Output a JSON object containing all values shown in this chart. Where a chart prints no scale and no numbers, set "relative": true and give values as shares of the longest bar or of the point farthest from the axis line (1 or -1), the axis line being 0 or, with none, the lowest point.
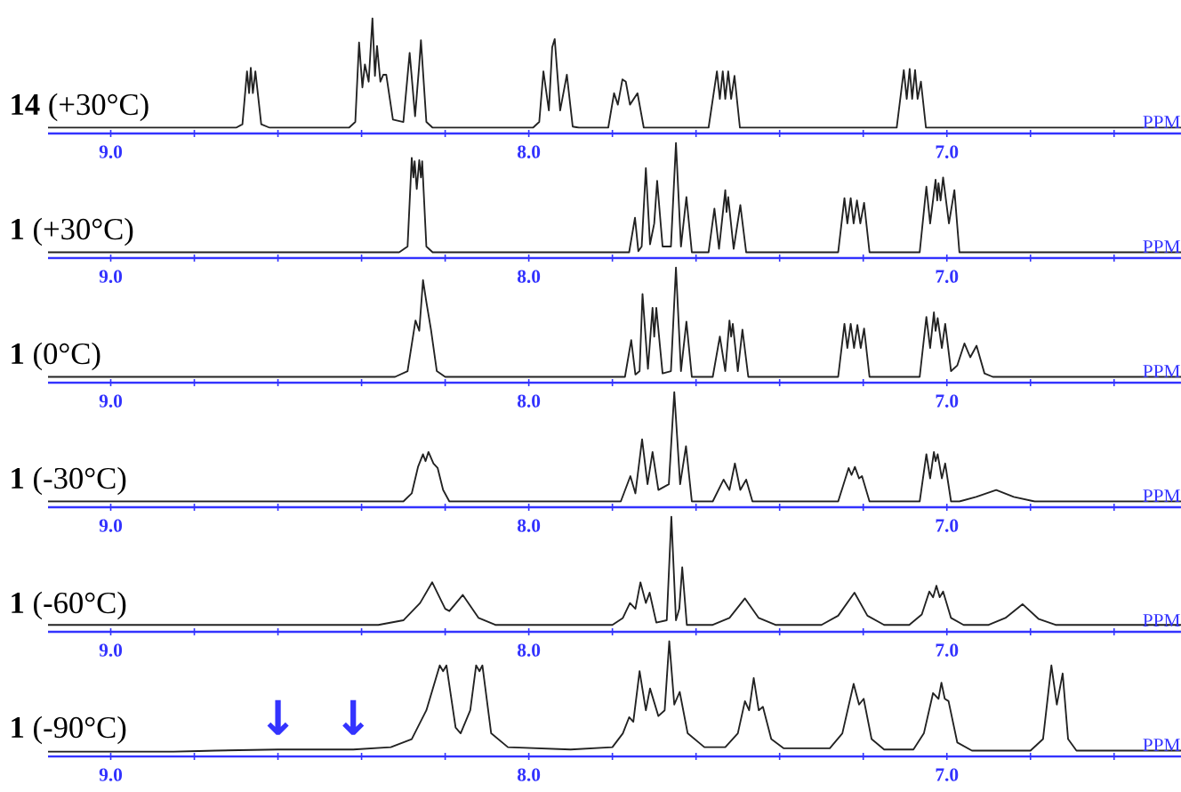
{
  "chart_data": [
    {
      "type": "line",
      "relative": true,
      "xlabel": "PPM",
      "xlim": [
        9.15,
        6.44
      ],
      "xticks": [
        {
          "value": 9.0,
          "label": "9.0"
        },
        {
          "value": 8.8,
          "label": null
        },
        {
          "value": 8.6,
          "label": null
        },
        {
          "value": 8.4,
          "label": null
        },
        {
          "value": 8.2,
          "label": null
        },
        {
          "value": 8.0,
          "label": "8.0"
        },
        {
          "value": 7.8,
          "label": null
        },
        {
          "value": 7.6,
          "label": null
        },
        {
          "value": 7.4,
          "label": null
        },
        {
          "value": 7.2,
          "label": null
        },
        {
          "value": 7.0,
          "label": "7.0"
        },
        {
          "value": 6.8,
          "label": null
        },
        {
          "value": 6.6,
          "label": null
        }
      ],
      "series": [
        {
          "name": "**14** (+30°C)",
          "color": "#222222",
          "x": [
            9.15,
            8.7,
            8.685,
            8.674,
            8.669,
            8.665,
            8.66,
            8.654,
            8.64,
            8.62,
            8.43,
            8.415,
            8.406,
            8.398,
            8.392,
            8.383,
            8.374,
            8.368,
            8.363,
            8.355,
            8.348,
            8.341,
            8.325,
            8.3,
            8.285,
            8.272,
            8.262,
            8.258,
            8.245,
            8.23,
            7.99,
            7.975,
            7.965,
            7.952,
            7.944,
            7.938,
            7.925,
            7.909,
            7.895,
            7.88,
            7.81,
            7.796,
            7.787,
            7.776,
            7.768,
            7.758,
            7.74,
            7.725,
            7.57,
            7.55,
            7.543,
            7.536,
            7.53,
            7.523,
            7.516,
            7.508,
            7.495,
            7.12,
            7.103,
            7.096,
            7.089,
            7.083,
            7.076,
            7.07,
            7.062,
            7.05,
            6.44
          ],
          "values": [
            0.05,
            0.05,
            0.08,
            0.54,
            0.35,
            0.57,
            0.35,
            0.54,
            0.08,
            0.05,
            0.05,
            0.1,
            0.79,
            0.4,
            0.6,
            0.45,
            1.0,
            0.5,
            0.76,
            0.45,
            0.51,
            0.51,
            0.12,
            0.1,
            0.7,
            0.15,
            0.6,
            0.81,
            0.1,
            0.05,
            0.05,
            0.1,
            0.54,
            0.2,
            0.75,
            0.82,
            0.2,
            0.51,
            0.06,
            0.05,
            0.05,
            0.35,
            0.25,
            0.47,
            0.45,
            0.25,
            0.35,
            0.05,
            0.05,
            0.54,
            0.3,
            0.54,
            0.3,
            0.54,
            0.3,
            0.5,
            0.05,
            0.05,
            0.55,
            0.3,
            0.56,
            0.3,
            0.55,
            0.3,
            0.45,
            0.05,
            0.05
          ]
        }
      ]
    },
    {
      "type": "line",
      "relative": true,
      "xlabel": "PPM",
      "xlim": [
        9.15,
        6.44
      ],
      "xticks": [
        {
          "value": 9.0,
          "label": "9.0"
        },
        {
          "value": 8.8,
          "label": null
        },
        {
          "value": 8.6,
          "label": null
        },
        {
          "value": 8.4,
          "label": null
        },
        {
          "value": 8.2,
          "label": null
        },
        {
          "value": 8.0,
          "label": "8.0"
        },
        {
          "value": 7.8,
          "label": null
        },
        {
          "value": 7.6,
          "label": null
        },
        {
          "value": 7.4,
          "label": null
        },
        {
          "value": 7.2,
          "label": null
        },
        {
          "value": 7.0,
          "label": "7.0"
        },
        {
          "value": 6.8,
          "label": null
        },
        {
          "value": 6.6,
          "label": null
        }
      ],
      "series": [
        {
          "name": "**1** (+30°C)",
          "color": "#222222",
          "x": [
            9.15,
            8.31,
            8.29,
            8.28,
            8.276,
            8.273,
            8.268,
            8.262,
            8.258,
            8.255,
            8.245,
            8.23,
            7.76,
            7.746,
            7.738,
            7.73,
            7.72,
            7.71,
            7.7,
            7.693,
            7.68,
            7.66,
            7.648,
            7.636,
            7.623,
            7.61,
            7.57,
            7.556,
            7.545,
            7.53,
            7.527,
            7.523,
            7.51,
            7.494,
            7.48,
            7.26,
            7.245,
            7.238,
            7.23,
            7.223,
            7.215,
            7.207,
            7.198,
            7.185,
            7.065,
            7.049,
            7.04,
            7.027,
            7.023,
            7.02,
            7.015,
            7.009,
            6.995,
            6.982,
            6.97,
            6.44
          ],
          "values": [
            0.05,
            0.05,
            0.1,
            0.87,
            0.7,
            0.84,
            0.6,
            0.85,
            0.7,
            0.84,
            0.1,
            0.05,
            0.05,
            0.35,
            0.06,
            0.1,
            0.78,
            0.12,
            0.3,
            0.67,
            0.1,
            0.1,
            1.0,
            0.1,
            0.53,
            0.05,
            0.05,
            0.43,
            0.08,
            0.59,
            0.4,
            0.53,
            0.08,
            0.46,
            0.05,
            0.05,
            0.52,
            0.3,
            0.52,
            0.3,
            0.5,
            0.3,
            0.48,
            0.05,
            0.05,
            0.62,
            0.3,
            0.68,
            0.5,
            0.65,
            0.5,
            0.7,
            0.3,
            0.59,
            0.05,
            0.05
          ]
        }
      ]
    },
    {
      "type": "line",
      "relative": true,
      "xlabel": "PPM",
      "xlim": [
        9.15,
        6.44
      ],
      "xticks": [
        {
          "value": 9.0,
          "label": "9.0"
        },
        {
          "value": 8.8,
          "label": null
        },
        {
          "value": 8.6,
          "label": null
        },
        {
          "value": 8.4,
          "label": null
        },
        {
          "value": 8.2,
          "label": null
        },
        {
          "value": 8.0,
          "label": "8.0"
        },
        {
          "value": 7.8,
          "label": null
        },
        {
          "value": 7.6,
          "label": null
        },
        {
          "value": 7.4,
          "label": null
        },
        {
          "value": 7.2,
          "label": null
        },
        {
          "value": 7.0,
          "label": "7.0"
        },
        {
          "value": 6.8,
          "label": null
        },
        {
          "value": 6.6,
          "label": null
        }
      ],
      "series": [
        {
          "name": "**1** (0°C)",
          "color": "#222222",
          "x": [
            9.15,
            8.32,
            8.29,
            8.271,
            8.262,
            8.253,
            8.245,
            8.234,
            8.22,
            8.2,
            7.77,
            7.755,
            7.745,
            7.735,
            7.728,
            7.715,
            7.704,
            7.7,
            7.695,
            7.68,
            7.66,
            7.648,
            7.636,
            7.623,
            7.61,
            7.56,
            7.543,
            7.53,
            7.52,
            7.516,
            7.512,
            7.5,
            7.489,
            7.475,
            7.26,
            7.245,
            7.238,
            7.23,
            7.222,
            7.214,
            7.206,
            7.198,
            7.185,
            7.065,
            7.049,
            7.04,
            7.031,
            7.027,
            7.022,
            7.012,
            7.004,
            6.99,
            6.975,
            6.958,
            6.944,
            6.929,
            6.91,
            6.89,
            6.44
          ],
          "values": [
            0.05,
            0.05,
            0.1,
            0.54,
            0.45,
            0.89,
            0.7,
            0.46,
            0.1,
            0.05,
            0.05,
            0.37,
            0.07,
            0.1,
            0.77,
            0.12,
            0.65,
            0.4,
            0.65,
            0.08,
            0.1,
            1.0,
            0.1,
            0.53,
            0.05,
            0.05,
            0.4,
            0.1,
            0.54,
            0.4,
            0.51,
            0.1,
            0.46,
            0.05,
            0.05,
            0.51,
            0.3,
            0.51,
            0.3,
            0.5,
            0.3,
            0.47,
            0.05,
            0.05,
            0.57,
            0.3,
            0.61,
            0.45,
            0.56,
            0.3,
            0.51,
            0.1,
            0.15,
            0.34,
            0.22,
            0.32,
            0.08,
            0.05,
            0.05
          ]
        }
      ]
    },
    {
      "type": "line",
      "relative": true,
      "xlabel": "PPM",
      "xlim": [
        9.15,
        6.44
      ],
      "xticks": [
        {
          "value": 9.0,
          "label": "9.0"
        },
        {
          "value": 8.8,
          "label": null
        },
        {
          "value": 8.6,
          "label": null
        },
        {
          "value": 8.4,
          "label": null
        },
        {
          "value": 8.2,
          "label": null
        },
        {
          "value": 8.0,
          "label": "8.0"
        },
        {
          "value": 7.8,
          "label": null
        },
        {
          "value": 7.6,
          "label": null
        },
        {
          "value": 7.4,
          "label": null
        },
        {
          "value": 7.2,
          "label": null
        },
        {
          "value": 7.0,
          "label": "7.0"
        },
        {
          "value": 6.8,
          "label": null
        },
        {
          "value": 6.6,
          "label": null
        }
      ],
      "series": [
        {
          "name": "**1** (-30°C)",
          "color": "#222222",
          "x": [
            9.15,
            8.3,
            8.28,
            8.265,
            8.253,
            8.247,
            8.24,
            8.228,
            8.218,
            8.205,
            8.19,
            7.78,
            7.757,
            7.745,
            7.729,
            7.716,
            7.704,
            7.69,
            7.665,
            7.652,
            7.638,
            7.624,
            7.61,
            7.56,
            7.534,
            7.52,
            7.507,
            7.494,
            7.48,
            7.465,
            7.26,
            7.235,
            7.228,
            7.22,
            7.21,
            7.203,
            7.185,
            7.065,
            7.049,
            7.04,
            7.031,
            7.027,
            7.022,
            7.012,
            7.004,
            6.99,
            6.97,
            6.93,
            6.882,
            6.84,
            6.79,
            6.44
          ],
          "values": [
            0.05,
            0.05,
            0.12,
            0.35,
            0.46,
            0.4,
            0.48,
            0.38,
            0.34,
            0.15,
            0.05,
            0.05,
            0.27,
            0.12,
            0.59,
            0.2,
            0.48,
            0.15,
            0.2,
            1.0,
            0.2,
            0.53,
            0.05,
            0.05,
            0.24,
            0.15,
            0.38,
            0.15,
            0.24,
            0.05,
            0.05,
            0.34,
            0.28,
            0.35,
            0.25,
            0.27,
            0.05,
            0.05,
            0.46,
            0.25,
            0.48,
            0.4,
            0.46,
            0.25,
            0.38,
            0.05,
            0.05,
            0.09,
            0.15,
            0.09,
            0.05,
            0.05
          ]
        }
      ]
    },
    {
      "type": "line",
      "relative": true,
      "xlabel": "PPM",
      "xlim": [
        9.15,
        6.44
      ],
      "xticks": [
        {
          "value": 9.0,
          "label": "9.0"
        },
        {
          "value": 8.8,
          "label": null
        },
        {
          "value": 8.6,
          "label": null
        },
        {
          "value": 8.4,
          "label": null
        },
        {
          "value": 8.2,
          "label": null
        },
        {
          "value": 8.0,
          "label": "8.0"
        },
        {
          "value": 7.8,
          "label": null
        },
        {
          "value": 7.6,
          "label": null
        },
        {
          "value": 7.4,
          "label": null
        },
        {
          "value": 7.2,
          "label": null
        },
        {
          "value": 7.0,
          "label": "7.0"
        },
        {
          "value": 6.8,
          "label": null
        },
        {
          "value": 6.6,
          "label": null
        }
      ],
      "series": [
        {
          "name": "**1** (-60°C)",
          "color": "#222222",
          "x": [
            9.15,
            8.36,
            8.3,
            8.26,
            8.231,
            8.2,
            8.19,
            8.158,
            8.12,
            8.08,
            7.8,
            7.775,
            7.758,
            7.745,
            7.733,
            7.72,
            7.711,
            7.695,
            7.67,
            7.659,
            7.648,
            7.64,
            7.633,
            7.622,
            7.56,
            7.52,
            7.483,
            7.45,
            7.41,
            7.3,
            7.26,
            7.221,
            7.19,
            7.15,
            7.09,
            7.06,
            7.042,
            7.033,
            7.025,
            7.017,
            7.009,
            6.99,
            6.96,
            6.9,
            6.86,
            6.819,
            6.78,
            6.74,
            6.44
          ],
          "values": [
            0.06,
            0.06,
            0.1,
            0.25,
            0.43,
            0.2,
            0.18,
            0.32,
            0.12,
            0.06,
            0.06,
            0.12,
            0.25,
            0.2,
            0.43,
            0.25,
            0.34,
            0.08,
            0.1,
            1.0,
            0.1,
            0.2,
            0.56,
            0.06,
            0.06,
            0.12,
            0.29,
            0.12,
            0.06,
            0.06,
            0.14,
            0.34,
            0.14,
            0.06,
            0.06,
            0.15,
            0.35,
            0.3,
            0.4,
            0.3,
            0.35,
            0.12,
            0.06,
            0.06,
            0.12,
            0.24,
            0.11,
            0.06,
            0.06
          ]
        }
      ]
    },
    {
      "type": "line",
      "relative": true,
      "xlabel": "PPM",
      "xlim": [
        9.15,
        6.44
      ],
      "xticks": [
        {
          "value": 9.0,
          "label": "9.0"
        },
        {
          "value": 8.8,
          "label": null
        },
        {
          "value": 8.6,
          "label": null
        },
        {
          "value": 8.4,
          "label": null
        },
        {
          "value": 8.2,
          "label": null
        },
        {
          "value": 8.0,
          "label": "8.0"
        },
        {
          "value": 7.8,
          "label": null
        },
        {
          "value": 7.6,
          "label": null
        },
        {
          "value": 7.4,
          "label": null
        },
        {
          "value": 7.2,
          "label": null
        },
        {
          "value": 7.0,
          "label": "7.0"
        },
        {
          "value": 6.8,
          "label": null
        },
        {
          "value": 6.6,
          "label": null
        }
      ],
      "annotations": [
        {
          "text": "↓",
          "x": 8.6,
          "y": 0.06
        },
        {
          "text": "↓",
          "x": 8.42,
          "y": 0.06
        }
      ],
      "series": [
        {
          "name": "**1** (-90°C)",
          "color": "#222222",
          "x": [
            9.15,
            8.85,
            8.75,
            8.6,
            8.42,
            8.33,
            8.28,
            8.245,
            8.213,
            8.205,
            8.197,
            8.175,
            8.163,
            8.14,
            8.126,
            8.118,
            8.111,
            8.09,
            8.05,
            7.9,
            7.8,
            7.775,
            7.76,
            7.75,
            7.735,
            7.72,
            7.71,
            7.69,
            7.675,
            7.664,
            7.652,
            7.639,
            7.62,
            7.58,
            7.53,
            7.5,
            7.483,
            7.473,
            7.462,
            7.45,
            7.44,
            7.42,
            7.39,
            7.28,
            7.25,
            7.223,
            7.21,
            7.199,
            7.18,
            7.15,
            7.08,
            7.055,
            7.033,
            7.02,
            7.013,
            7.005,
            6.996,
            6.975,
            6.94,
            6.8,
            6.77,
            6.75,
            6.737,
            6.723,
            6.71,
            6.69,
            6.44
          ],
          "values": [
            0.04,
            0.04,
            0.05,
            0.06,
            0.06,
            0.08,
            0.15,
            0.4,
            0.79,
            0.74,
            0.79,
            0.25,
            0.2,
            0.4,
            0.79,
            0.74,
            0.79,
            0.2,
            0.08,
            0.06,
            0.08,
            0.2,
            0.34,
            0.3,
            0.74,
            0.4,
            0.59,
            0.35,
            0.4,
            1.0,
            0.45,
            0.56,
            0.2,
            0.08,
            0.08,
            0.2,
            0.48,
            0.4,
            0.68,
            0.4,
            0.43,
            0.15,
            0.07,
            0.07,
            0.2,
            0.63,
            0.45,
            0.5,
            0.15,
            0.06,
            0.06,
            0.2,
            0.55,
            0.5,
            0.64,
            0.5,
            0.48,
            0.12,
            0.05,
            0.05,
            0.15,
            0.79,
            0.45,
            0.72,
            0.15,
            0.05,
            0.05
          ]
        }
      ]
    }
  ]
}
